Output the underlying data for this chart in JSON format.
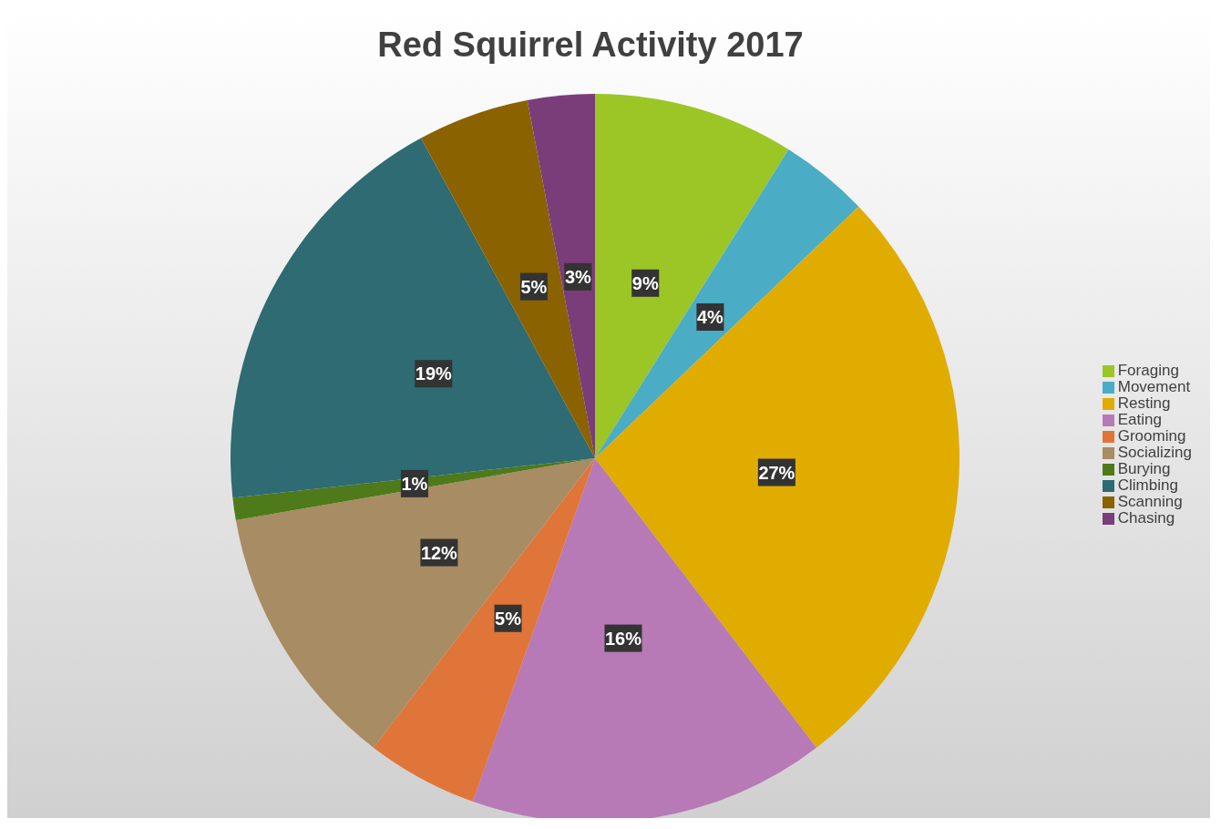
{
  "chart_data": {
    "type": "pie",
    "title": "Red Squirrel Activity 2017",
    "categories": [
      "Foraging",
      "Movement",
      "Resting",
      "Eating",
      "Grooming",
      "Socializing",
      "Burying",
      "Climbing",
      "Scanning",
      "Chasing"
    ],
    "values": [
      9,
      4,
      27,
      16,
      5,
      12,
      1,
      19,
      5,
      3
    ],
    "value_labels": [
      "9%",
      "4%",
      "27%",
      "16%",
      "5%",
      "12%",
      "1%",
      "19%",
      "5%",
      "3%"
    ],
    "colors": [
      "#9bc625",
      "#4bacc6",
      "#e0ac00",
      "#b77ab6",
      "#e07539",
      "#a88c64",
      "#4e7a1a",
      "#2e6b73",
      "#8a6200",
      "#7a3d7a"
    ],
    "legend": "right"
  }
}
